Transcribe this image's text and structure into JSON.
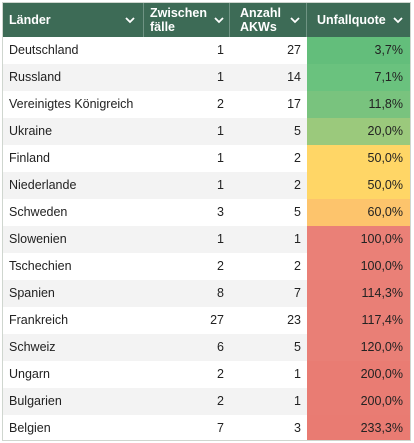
{
  "header": {
    "col_land": "Länder",
    "col_zwischen_line1": "Zwischen",
    "col_zwischen_line2": "fälle",
    "col_akw_line1": "Anzahl",
    "col_akw_line2": "AKWs",
    "col_uq": "Unfallquote",
    "icon": "chevron-down-icon",
    "bg_color": "#3d6b56"
  },
  "rows": [
    {
      "land": "Deutschland",
      "zw": "1",
      "akw": "27",
      "uq": "3,7%",
      "color": "#63be7b"
    },
    {
      "land": "Russland",
      "zw": "1",
      "akw": "14",
      "uq": "7,1%",
      "color": "#6ac27e"
    },
    {
      "land": "Vereinigtes Königreich",
      "zw": "2",
      "akw": "17",
      "uq": "11,8%",
      "color": "#79c37e"
    },
    {
      "land": "Ukraine",
      "zw": "1",
      "akw": "5",
      "uq": "20,0%",
      "color": "#9bc97c"
    },
    {
      "land": "Finland",
      "zw": "1",
      "akw": "2",
      "uq": "50,0%",
      "color": "#ffd666"
    },
    {
      "land": "Niederlande",
      "zw": "1",
      "akw": "2",
      "uq": "50,0%",
      "color": "#ffd666"
    },
    {
      "land": "Schweden",
      "zw": "3",
      "akw": "5",
      "uq": "60,0%",
      "color": "#fdc46c"
    },
    {
      "land": "Slowenien",
      "zw": "1",
      "akw": "1",
      "uq": "100,0%",
      "color": "#ea8077"
    },
    {
      "land": "Tschechien",
      "zw": "2",
      "akw": "2",
      "uq": "100,0%",
      "color": "#ea8077"
    },
    {
      "land": "Spanien",
      "zw": "8",
      "akw": "7",
      "uq": "114,3%",
      "color": "#e97f76"
    },
    {
      "land": "Frankreich",
      "zw": "27",
      "akw": "23",
      "uq": "117,4%",
      "color": "#e97f76"
    },
    {
      "land": "Schweiz",
      "zw": "6",
      "akw": "5",
      "uq": "120,0%",
      "color": "#e97f76"
    },
    {
      "land": "Ungarn",
      "zw": "2",
      "akw": "1",
      "uq": "200,0%",
      "color": "#e97c73"
    },
    {
      "land": "Bulgarien",
      "zw": "2",
      "akw": "1",
      "uq": "200,0%",
      "color": "#e97c73"
    },
    {
      "land": "Belgien",
      "zw": "7",
      "akw": "3",
      "uq": "233,3%",
      "color": "#e97b72"
    }
  ]
}
